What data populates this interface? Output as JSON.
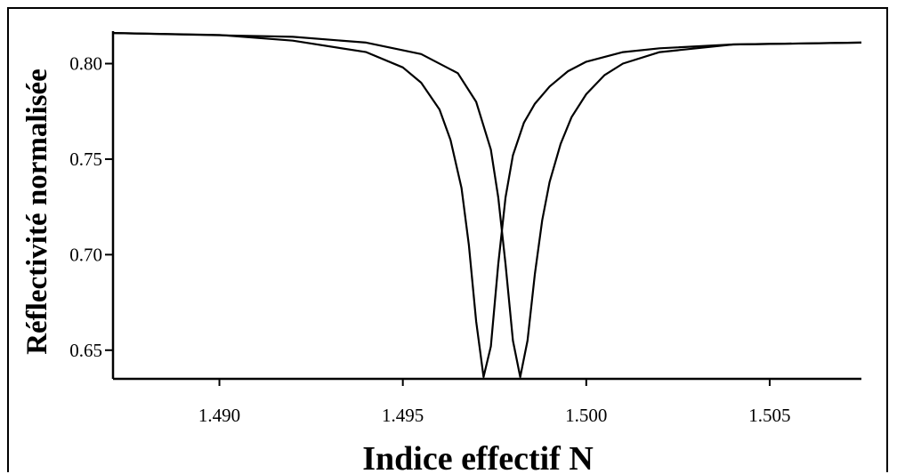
{
  "chart_data": {
    "type": "line",
    "title": "",
    "xlabel": "Indice effectif N",
    "ylabel": "Réflectivité normalisée",
    "xlim": [
      1.4871,
      1.5075
    ],
    "ylim": [
      0.635,
      0.817
    ],
    "grid": false,
    "legend": "none",
    "x_ticks": [
      {
        "value": 1.49,
        "label": "1.490"
      },
      {
        "value": 1.495,
        "label": "1.495"
      },
      {
        "value": 1.5,
        "label": "1.500"
      },
      {
        "value": 1.505,
        "label": "1.505"
      }
    ],
    "y_ticks": [
      {
        "value": 0.8,
        "label": "0.80"
      },
      {
        "value": 0.75,
        "label": "0.75"
      },
      {
        "value": 0.7,
        "label": "0.70"
      },
      {
        "value": 0.65,
        "label": "0.65"
      }
    ],
    "series": [
      {
        "color": "#000000",
        "x": [
          1.4871,
          1.49,
          1.492,
          1.494,
          1.495,
          1.4955,
          1.496,
          1.4963,
          1.4966,
          1.4968,
          1.497,
          1.4972,
          1.4974,
          1.4976,
          1.4978,
          1.498,
          1.4983,
          1.4986,
          1.499,
          1.4995,
          1.5,
          1.501,
          1.502,
          1.504,
          1.5075
        ],
        "y": [
          0.816,
          0.815,
          0.812,
          0.806,
          0.798,
          0.79,
          0.776,
          0.76,
          0.735,
          0.705,
          0.665,
          0.636,
          0.652,
          0.695,
          0.73,
          0.752,
          0.769,
          0.779,
          0.788,
          0.796,
          0.801,
          0.806,
          0.808,
          0.81,
          0.811
        ]
      },
      {
        "color": "#000000",
        "x": [
          1.4871,
          1.492,
          1.494,
          1.4955,
          1.4965,
          1.497,
          1.4974,
          1.4976,
          1.4978,
          1.498,
          1.4982,
          1.4984,
          1.4986,
          1.4988,
          1.499,
          1.4993,
          1.4996,
          1.5,
          1.5005,
          1.501,
          1.502,
          1.504,
          1.5075
        ],
        "y": [
          0.816,
          0.814,
          0.811,
          0.805,
          0.795,
          0.78,
          0.755,
          0.73,
          0.695,
          0.655,
          0.636,
          0.655,
          0.69,
          0.718,
          0.738,
          0.758,
          0.772,
          0.784,
          0.794,
          0.8,
          0.806,
          0.81,
          0.811
        ]
      }
    ]
  }
}
